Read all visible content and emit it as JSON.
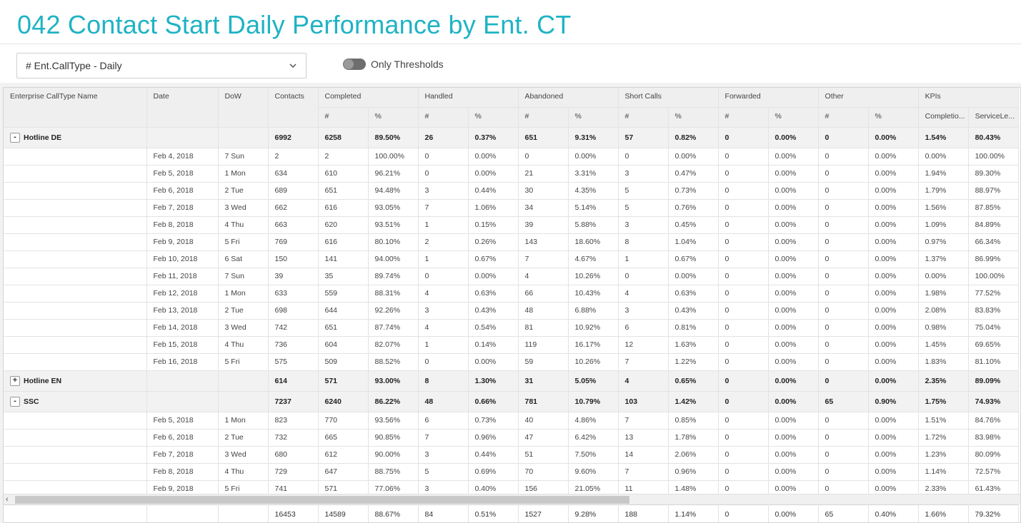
{
  "title": "042 Contact Start Daily Performance by Ent. CT",
  "selector": {
    "value": "# Ent.CallType - Daily"
  },
  "toggle": {
    "label": "Only Thresholds",
    "on": false
  },
  "columns": {
    "name": "Enterprise CallType Name",
    "date": "Date",
    "dow": "DoW",
    "contacts": "Contacts",
    "groups": [
      "Completed",
      "Handled",
      "Abandoned",
      "Short Calls",
      "Forwarded",
      "Other"
    ],
    "kpis": "KPIs",
    "sub_count": "#",
    "sub_pct": "%",
    "kpi_sub": [
      "Completio...",
      "ServiceLe..."
    ]
  },
  "groups": [
    {
      "name": "Hotline DE",
      "expanded": true,
      "toggle": "-",
      "summary": [
        "6992",
        "6258",
        "89.50%",
        "26",
        "0.37%",
        "651",
        "9.31%",
        "57",
        "0.82%",
        "0",
        "0.00%",
        "0",
        "0.00%",
        "1.54%",
        "80.43%"
      ],
      "rows": [
        [
          "Feb 4, 2018",
          "7 Sun",
          "2",
          "2",
          "100.00%",
          "0",
          "0.00%",
          "0",
          "0.00%",
          "0",
          "0.00%",
          "0",
          "0.00%",
          "0",
          "0.00%",
          "0.00%",
          "100.00%"
        ],
        [
          "Feb 5, 2018",
          "1 Mon",
          "634",
          "610",
          "96.21%",
          "0",
          "0.00%",
          "21",
          "3.31%",
          "3",
          "0.47%",
          "0",
          "0.00%",
          "0",
          "0.00%",
          "1.94%",
          "89.30%"
        ],
        [
          "Feb 6, 2018",
          "2 Tue",
          "689",
          "651",
          "94.48%",
          "3",
          "0.44%",
          "30",
          "4.35%",
          "5",
          "0.73%",
          "0",
          "0.00%",
          "0",
          "0.00%",
          "1.79%",
          "88.97%"
        ],
        [
          "Feb 7, 2018",
          "3 Wed",
          "662",
          "616",
          "93.05%",
          "7",
          "1.06%",
          "34",
          "5.14%",
          "5",
          "0.76%",
          "0",
          "0.00%",
          "0",
          "0.00%",
          "1.56%",
          "87.85%"
        ],
        [
          "Feb 8, 2018",
          "4 Thu",
          "663",
          "620",
          "93.51%",
          "1",
          "0.15%",
          "39",
          "5.88%",
          "3",
          "0.45%",
          "0",
          "0.00%",
          "0",
          "0.00%",
          "1.09%",
          "84.89%"
        ],
        [
          "Feb 9, 2018",
          "5 Fri",
          "769",
          "616",
          "80.10%",
          "2",
          "0.26%",
          "143",
          "18.60%",
          "8",
          "1.04%",
          "0",
          "0.00%",
          "0",
          "0.00%",
          "0.97%",
          "66.34%"
        ],
        [
          "Feb 10, 2018",
          "6 Sat",
          "150",
          "141",
          "94.00%",
          "1",
          "0.67%",
          "7",
          "4.67%",
          "1",
          "0.67%",
          "0",
          "0.00%",
          "0",
          "0.00%",
          "1.37%",
          "86.99%"
        ],
        [
          "Feb 11, 2018",
          "7 Sun",
          "39",
          "35",
          "89.74%",
          "0",
          "0.00%",
          "4",
          "10.26%",
          "0",
          "0.00%",
          "0",
          "0.00%",
          "0",
          "0.00%",
          "0.00%",
          "100.00%"
        ],
        [
          "Feb 12, 2018",
          "1 Mon",
          "633",
          "559",
          "88.31%",
          "4",
          "0.63%",
          "66",
          "10.43%",
          "4",
          "0.63%",
          "0",
          "0.00%",
          "0",
          "0.00%",
          "1.98%",
          "77.52%"
        ],
        [
          "Feb 13, 2018",
          "2 Tue",
          "698",
          "644",
          "92.26%",
          "3",
          "0.43%",
          "48",
          "6.88%",
          "3",
          "0.43%",
          "0",
          "0.00%",
          "0",
          "0.00%",
          "2.08%",
          "83.83%"
        ],
        [
          "Feb 14, 2018",
          "3 Wed",
          "742",
          "651",
          "87.74%",
          "4",
          "0.54%",
          "81",
          "10.92%",
          "6",
          "0.81%",
          "0",
          "0.00%",
          "0",
          "0.00%",
          "0.98%",
          "75.04%"
        ],
        [
          "Feb 15, 2018",
          "4 Thu",
          "736",
          "604",
          "82.07%",
          "1",
          "0.14%",
          "119",
          "16.17%",
          "12",
          "1.63%",
          "0",
          "0.00%",
          "0",
          "0.00%",
          "1.45%",
          "69.65%"
        ],
        [
          "Feb 16, 2018",
          "5 Fri",
          "575",
          "509",
          "88.52%",
          "0",
          "0.00%",
          "59",
          "10.26%",
          "7",
          "1.22%",
          "0",
          "0.00%",
          "0",
          "0.00%",
          "1.83%",
          "81.10%"
        ]
      ]
    },
    {
      "name": "Hotline EN",
      "expanded": false,
      "toggle": "+",
      "summary": [
        "614",
        "571",
        "93.00%",
        "8",
        "1.30%",
        "31",
        "5.05%",
        "4",
        "0.65%",
        "0",
        "0.00%",
        "0",
        "0.00%",
        "2.35%",
        "89.09%"
      ],
      "rows": []
    },
    {
      "name": "SSC",
      "expanded": true,
      "toggle": "-",
      "summary": [
        "7237",
        "6240",
        "86.22%",
        "48",
        "0.66%",
        "781",
        "10.79%",
        "103",
        "1.42%",
        "0",
        "0.00%",
        "65",
        "0.90%",
        "1.75%",
        "74.93%"
      ],
      "rows": [
        [
          "Feb 5, 2018",
          "1 Mon",
          "823",
          "770",
          "93.56%",
          "6",
          "0.73%",
          "40",
          "4.86%",
          "7",
          "0.85%",
          "0",
          "0.00%",
          "0",
          "0.00%",
          "1.51%",
          "84.76%"
        ],
        [
          "Feb 6, 2018",
          "2 Tue",
          "732",
          "665",
          "90.85%",
          "7",
          "0.96%",
          "47",
          "6.42%",
          "13",
          "1.78%",
          "0",
          "0.00%",
          "0",
          "0.00%",
          "1.72%",
          "83.98%"
        ],
        [
          "Feb 7, 2018",
          "3 Wed",
          "680",
          "612",
          "90.00%",
          "3",
          "0.44%",
          "51",
          "7.50%",
          "14",
          "2.06%",
          "0",
          "0.00%",
          "0",
          "0.00%",
          "1.23%",
          "80.09%"
        ],
        [
          "Feb 8, 2018",
          "4 Thu",
          "729",
          "647",
          "88.75%",
          "5",
          "0.69%",
          "70",
          "9.60%",
          "7",
          "0.96%",
          "0",
          "0.00%",
          "0",
          "0.00%",
          "1.14%",
          "72.57%"
        ],
        [
          "Feb 9, 2018",
          "5 Fri",
          "741",
          "571",
          "77.06%",
          "3",
          "0.40%",
          "156",
          "21.05%",
          "11",
          "1.48%",
          "0",
          "0.00%",
          "0",
          "0.00%",
          "2.33%",
          "61.43%"
        ]
      ]
    }
  ],
  "totals": [
    "",
    "",
    "",
    "16453",
    "14589",
    "88.67%",
    "84",
    "0.51%",
    "1527",
    "9.28%",
    "188",
    "1.14%",
    "0",
    "0.00%",
    "65",
    "0.40%",
    "1.66%",
    "79.32%"
  ],
  "scrollbar": {
    "left_arrow": "‹"
  }
}
